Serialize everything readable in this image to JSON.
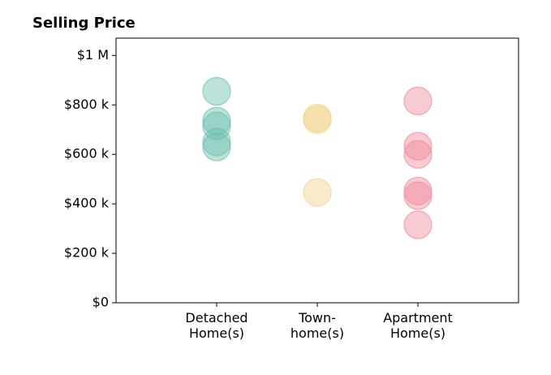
{
  "chart_data": {
    "type": "strip",
    "title": "Selling Price",
    "categories": [
      "Detached\nHome(s)",
      "Town-\nhome(s)",
      "Apartment\nHome(s)"
    ],
    "values": [
      [
        855000,
        735000,
        715000,
        650000,
        630000
      ],
      [
        747000,
        740000,
        446000
      ],
      [
        816000,
        633000,
        600000,
        452000,
        433000,
        315000
      ]
    ],
    "colors": [
      "#6dbfb0",
      "#f2d38a",
      "#f08a98"
    ],
    "ylim": [
      0,
      1070000
    ],
    "yticks": [
      {
        "value": 0,
        "label": "$0"
      },
      {
        "value": 200000,
        "label": "$200 k"
      },
      {
        "value": 400000,
        "label": "$400 k"
      },
      {
        "value": 600000,
        "label": "$600 k"
      },
      {
        "value": 800000,
        "label": "$800 k"
      },
      {
        "value": 1000000,
        "label": "$1 M"
      }
    ],
    "grid": false
  }
}
